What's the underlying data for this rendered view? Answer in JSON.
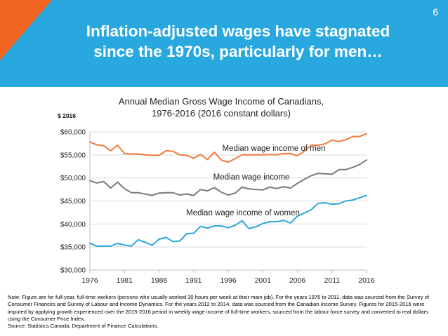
{
  "slide": {
    "page_number": "6",
    "title_line1": "Inflation-adjusted wages have stagnated",
    "title_line2": "since the 1970s, particularly for men…",
    "colors": {
      "banner": "#29a8e0",
      "accent": "#f26522"
    }
  },
  "chart_data": {
    "type": "line",
    "title_line1": "Annual Median Gross Wage Income of Canadians,",
    "title_line2": "1976-2016 (2016 constant dollars)",
    "ylabel": "$ 2016",
    "xlabel": "",
    "xlim": [
      1976,
      2016
    ],
    "ylim": [
      30000,
      60000
    ],
    "grid": "horizontal",
    "x_ticks": [
      1976,
      1981,
      1986,
      1991,
      1996,
      2001,
      2006,
      2011,
      2016
    ],
    "y_ticks": [
      30000,
      35000,
      40000,
      45000,
      50000,
      55000,
      60000
    ],
    "y_tick_labels": [
      "$30,000",
      "$35,000",
      "$40,000",
      "$45,000",
      "$50,000",
      "$55,000",
      "$60,000"
    ],
    "x": [
      1976,
      1977,
      1978,
      1979,
      1980,
      1981,
      1982,
      1983,
      1984,
      1985,
      1986,
      1987,
      1988,
      1989,
      1990,
      1991,
      1992,
      1993,
      1994,
      1995,
      1996,
      1997,
      1998,
      1999,
      2000,
      2001,
      2002,
      2003,
      2004,
      2005,
      2006,
      2007,
      2008,
      2009,
      2010,
      2011,
      2012,
      2013,
      2014,
      2015,
      2016
    ],
    "series": [
      {
        "name": "Median wage income of men",
        "color": "#f07a3c",
        "values": [
          57800,
          57200,
          57000,
          55900,
          57100,
          55300,
          55200,
          55200,
          55000,
          54900,
          54900,
          55900,
          55800,
          55000,
          54900,
          54300,
          55100,
          54000,
          55600,
          53900,
          53400,
          54200,
          55000,
          55000,
          55000,
          55000,
          55100,
          55000,
          55300,
          55300,
          54800,
          55800,
          57100,
          57100,
          57400,
          58200,
          57900,
          58300,
          59000,
          59000,
          59600
        ]
      },
      {
        "name": "Median wage income",
        "color": "#7a7a7a",
        "values": [
          49400,
          48900,
          49200,
          47800,
          49100,
          47700,
          46800,
          46800,
          46500,
          46200,
          46700,
          46800,
          46800,
          46300,
          46500,
          46200,
          47500,
          47200,
          47900,
          46900,
          46300,
          46700,
          48000,
          47600,
          47500,
          47400,
          48000,
          47700,
          48100,
          47800,
          48800,
          49700,
          50500,
          51000,
          50900,
          50800,
          51800,
          51800,
          52300,
          52900,
          53900
        ]
      },
      {
        "name": "Median wage income of women",
        "color": "#2aa6dc",
        "values": [
          35800,
          35200,
          35200,
          35200,
          35800,
          35400,
          35200,
          36600,
          36000,
          35400,
          36700,
          37100,
          36200,
          36300,
          37900,
          38000,
          39500,
          39100,
          39600,
          39600,
          39200,
          39700,
          40700,
          39000,
          39400,
          40100,
          40500,
          40500,
          40800,
          40200,
          41700,
          42400,
          43100,
          44500,
          44600,
          44300,
          44400,
          45000,
          45200,
          45700,
          46200
        ]
      }
    ]
  },
  "note": {
    "text": "Note: Figure are for full-year, full-time workers (persons who usually worked 30 hours per week at their main job).  For the years 1976 to 2011, data was sourced from the Survey of Consumer Finances and Survey of Labour and Income Dynamics. For the years 2012 to 2014, data was sourced from the Canadian Income Survey. Figures for 2015-2016 were imputed by applying growth experienced over the 2015-2016 period in weekly wage income of full-time workers, sourced from the labour force survey and converted to real dollars using the Consumer Price Index.",
    "source": "Source: Statistics Canada; Department of Finance Calculations."
  }
}
